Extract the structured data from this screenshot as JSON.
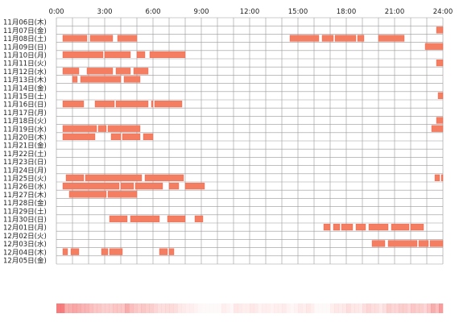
{
  "chart_data": {
    "type": "heatmap",
    "x_ticks": [
      "0:00",
      "3:00",
      "6:00",
      "9:00",
      "12:00",
      "15:00",
      "18:00",
      "21:00",
      "24:00"
    ],
    "xlim": [
      0,
      24
    ],
    "grid": true,
    "days": [
      {
        "label": "11月06日(木)",
        "intervals": []
      },
      {
        "label": "11月07日(金)",
        "intervals": [
          [
            23.6,
            24.0
          ]
        ]
      },
      {
        "label": "11月08日(土)",
        "intervals": [
          [
            0.4,
            1.9
          ],
          [
            2.1,
            3.5
          ],
          [
            3.8,
            5.0
          ],
          [
            14.5,
            16.3
          ],
          [
            16.5,
            17.2
          ],
          [
            17.3,
            18.6
          ],
          [
            18.7,
            19.1
          ],
          [
            20.0,
            21.6
          ]
        ]
      },
      {
        "label": "11月09日(日)",
        "intervals": [
          [
            22.9,
            24.0
          ]
        ]
      },
      {
        "label": "11月10日(月)",
        "intervals": [
          [
            0.4,
            2.9
          ],
          [
            3.0,
            4.6
          ],
          [
            5.0,
            5.5
          ],
          [
            5.8,
            8.0
          ]
        ]
      },
      {
        "label": "11月11日(火)",
        "intervals": [
          [
            23.6,
            24.0
          ]
        ]
      },
      {
        "label": "11月12日(水)",
        "intervals": [
          [
            0.4,
            1.4
          ],
          [
            1.9,
            3.5
          ],
          [
            3.7,
            4.6
          ],
          [
            4.8,
            5.7
          ]
        ]
      },
      {
        "label": "11月13日(木)",
        "intervals": [
          [
            1.0,
            1.3
          ],
          [
            1.5,
            4.0
          ],
          [
            4.2,
            5.2
          ]
        ]
      },
      {
        "label": "11月14日(金)",
        "intervals": []
      },
      {
        "label": "11月15日(土)",
        "intervals": [
          [
            23.7,
            24.0
          ]
        ]
      },
      {
        "label": "11月16日(日)",
        "intervals": [
          [
            0.4,
            1.7
          ],
          [
            2.4,
            3.6
          ],
          [
            3.7,
            5.7
          ],
          [
            5.9,
            6.0
          ],
          [
            6.1,
            7.8
          ]
        ]
      },
      {
        "label": "11月17日(月)",
        "intervals": []
      },
      {
        "label": "11月18日(火)",
        "intervals": [
          [
            23.6,
            24.0
          ]
        ]
      },
      {
        "label": "11月19日(水)",
        "intervals": [
          [
            0.4,
            2.5
          ],
          [
            2.6,
            3.1
          ],
          [
            3.2,
            5.2
          ],
          [
            23.3,
            24.0
          ]
        ]
      },
      {
        "label": "11月20日(木)",
        "intervals": [
          [
            0.4,
            2.4
          ],
          [
            3.4,
            4.0
          ],
          [
            4.1,
            5.2
          ],
          [
            5.4,
            6.0
          ]
        ]
      },
      {
        "label": "11月21日(金)",
        "intervals": []
      },
      {
        "label": "11月22日(土)",
        "intervals": []
      },
      {
        "label": "11月23日(日)",
        "intervals": []
      },
      {
        "label": "11月24日(月)",
        "intervals": []
      },
      {
        "label": "11月25日(火)",
        "intervals": [
          [
            0.6,
            1.7
          ],
          [
            1.8,
            5.3
          ],
          [
            5.5,
            7.9
          ],
          [
            23.5,
            23.8
          ],
          [
            23.9,
            24.0
          ]
        ]
      },
      {
        "label": "11月26日(水)",
        "intervals": [
          [
            0.4,
            3.9
          ],
          [
            4.0,
            4.8
          ],
          [
            4.9,
            6.6
          ],
          [
            7.0,
            7.6
          ],
          [
            8.0,
            9.2
          ]
        ]
      },
      {
        "label": "11月27日(木)",
        "intervals": [
          [
            0.8,
            3.1
          ],
          [
            3.2,
            5.0
          ]
        ]
      },
      {
        "label": "11月28日(金)",
        "intervals": []
      },
      {
        "label": "11月29日(土)",
        "intervals": []
      },
      {
        "label": "11月30日(日)",
        "intervals": [
          [
            3.3,
            4.4
          ],
          [
            4.6,
            6.4
          ],
          [
            6.9,
            8.0
          ],
          [
            8.6,
            9.1
          ]
        ]
      },
      {
        "label": "12月01日(月)",
        "intervals": [
          [
            16.6,
            17.0
          ],
          [
            17.2,
            17.6
          ],
          [
            17.7,
            18.4
          ],
          [
            18.6,
            19.2
          ],
          [
            19.4,
            20.6
          ],
          [
            20.8,
            21.9
          ],
          [
            22.0,
            22.8
          ]
        ]
      },
      {
        "label": "12月02日(火)",
        "intervals": []
      },
      {
        "label": "12月03日(水)",
        "intervals": [
          [
            19.6,
            20.4
          ],
          [
            20.6,
            22.4
          ],
          [
            22.5,
            23.1
          ],
          [
            23.2,
            24.0
          ]
        ]
      },
      {
        "label": "12月04日(木)",
        "intervals": [
          [
            0.4,
            0.7
          ],
          [
            0.9,
            1.4
          ],
          [
            2.8,
            3.2
          ],
          [
            3.3,
            4.1
          ],
          [
            6.4,
            6.9
          ],
          [
            7.0,
            7.3
          ]
        ]
      },
      {
        "label": "12月05日(金)",
        "intervals": []
      }
    ],
    "summary_bar": {
      "resolution_hours": 0.25,
      "intensity": [
        0.8,
        0.8,
        0.5,
        0.5,
        0.55,
        0.5,
        0.45,
        0.45,
        0.4,
        0.35,
        0.35,
        0.3,
        0.3,
        0.3,
        0.35,
        0.35,
        0.35,
        0.5,
        0.4,
        0.35,
        0.3,
        0.35,
        0.3,
        0.3,
        0.25,
        0.2,
        0.2,
        0.22,
        0.22,
        0.2,
        0.15,
        0.12,
        0.1,
        0.1,
        0.08,
        0.05,
        0.02,
        0.02,
        0.0,
        0.0,
        0.0,
        0.1,
        0.08,
        0.05,
        0.15,
        0.12,
        0.1,
        0.1,
        0.15,
        0.12,
        0.08,
        0.1,
        0.1,
        0.08,
        0.1,
        0.1,
        0.12,
        0.08,
        0.05,
        0.08,
        0.12,
        0.1,
        0.15,
        0.1,
        0.0,
        0.0,
        0.0,
        0.0,
        0.1,
        0.15,
        0.12,
        0.15,
        0.2,
        0.15,
        0.15,
        0.12,
        0.2,
        0.25,
        0.2,
        0.2,
        0.15,
        0.2,
        0.3,
        0.25,
        0.25,
        0.3,
        0.3,
        0.25,
        0.35,
        0.3,
        0.3,
        0.25,
        0.35,
        0.5,
        0.4,
        0.6
      ]
    },
    "colors": {
      "bar_fill": "#f47e62",
      "bar_stroke": "#e8624a",
      "grid": "#999999",
      "summary_base": "#f25c5c"
    }
  }
}
